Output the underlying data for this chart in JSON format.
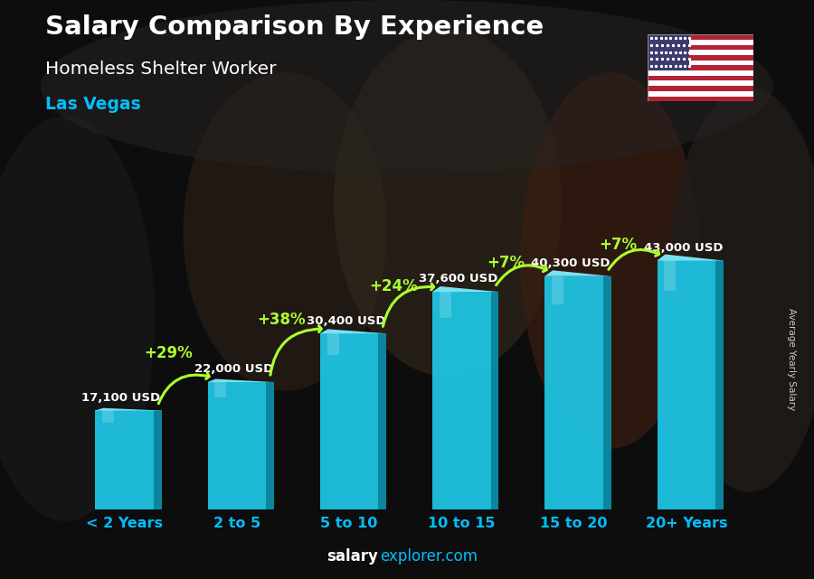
{
  "title": "Salary Comparison By Experience",
  "subtitle": "Homeless Shelter Worker",
  "city": "Las Vegas",
  "categories": [
    "< 2 Years",
    "2 to 5",
    "5 to 10",
    "10 to 15",
    "15 to 20",
    "20+ Years"
  ],
  "values": [
    17100,
    22000,
    30400,
    37600,
    40300,
    43000
  ],
  "labels": [
    "17,100 USD",
    "22,000 USD",
    "30,400 USD",
    "37,600 USD",
    "40,300 USD",
    "43,000 USD"
  ],
  "pct_labels": [
    "+29%",
    "+38%",
    "+24%",
    "+7%",
    "+7%"
  ],
  "bar_face_color": "#1EC8E8",
  "bar_side_color": "#0A90AA",
  "bar_top_color": "#7EEEFF",
  "bg_dark": "#1a1a2e",
  "title_color": "#FFFFFF",
  "subtitle_color": "#FFFFFF",
  "city_color": "#00BFFF",
  "pct_color": "#ADFF2F",
  "label_color": "#FFFFFF",
  "xtick_color": "#00BFFF",
  "footer_bold_color": "#FFFFFF",
  "footer_light_color": "#00BFFF",
  "ylabel_color": "#CCCCCC",
  "ylabel": "Average Yearly Salary",
  "footer_bold": "salary",
  "footer_light": "explorer.com",
  "ylim": [
    0,
    52000
  ],
  "arrow_positions": [
    [
      0,
      1,
      "+29%",
      0.52,
      -0.45
    ],
    [
      1,
      2,
      "+38%",
      0.63,
      -0.45
    ],
    [
      2,
      3,
      "+24%",
      0.74,
      -0.45
    ],
    [
      3,
      4,
      "+7%",
      0.82,
      -0.45
    ],
    [
      4,
      5,
      "+7%",
      0.88,
      -0.45
    ]
  ]
}
